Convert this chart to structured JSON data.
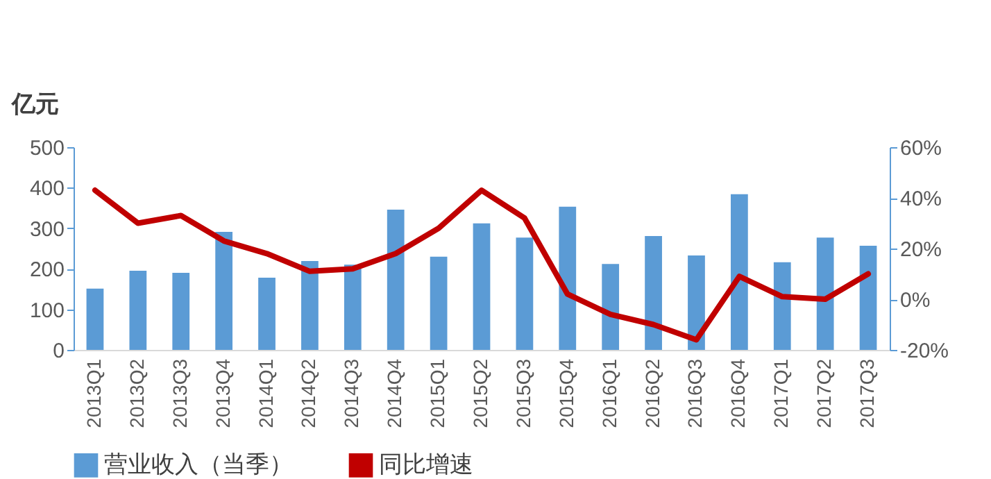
{
  "chart_data": {
    "type": "bar",
    "ylabel": "亿元",
    "categories": [
      "2013Q1",
      "2013Q2",
      "2013Q3",
      "2013Q4",
      "2014Q1",
      "2014Q2",
      "2014Q3",
      "2014Q4",
      "2015Q1",
      "2015Q2",
      "2015Q3",
      "2015Q4",
      "2016Q1",
      "2016Q2",
      "2016Q3",
      "2016Q4",
      "2017Q1",
      "2017Q2",
      "2017Q3"
    ],
    "series": [
      {
        "name": "营业收入（当季）",
        "color": "#5b9bd5",
        "values": [
          151,
          195,
          190,
          291,
          178,
          219,
          210,
          346,
          230,
          312,
          277,
          353,
          212,
          281,
          233,
          384,
          216,
          277,
          257
        ]
      },
      {
        "name": "同比增速",
        "type": "line",
        "axis": "y2",
        "color": "#c00000",
        "values": [
          43,
          30,
          33,
          23,
          18,
          11,
          12,
          18,
          28,
          43,
          32,
          2,
          -6,
          -10,
          -16,
          9,
          1,
          0,
          10
        ]
      }
    ],
    "ylim": [
      0,
      500
    ],
    "yticks": [
      0,
      100,
      200,
      300,
      400,
      500
    ],
    "y2lim": [
      -20,
      60
    ],
    "y2ticks": [
      {
        "value": -20,
        "label": "-20%"
      },
      {
        "value": 0,
        "label": "0%"
      },
      {
        "value": 20,
        "label": "20%"
      },
      {
        "value": 40,
        "label": "40%"
      },
      {
        "value": 60,
        "label": "60%"
      }
    ],
    "grid": false,
    "legend": "bottom"
  }
}
